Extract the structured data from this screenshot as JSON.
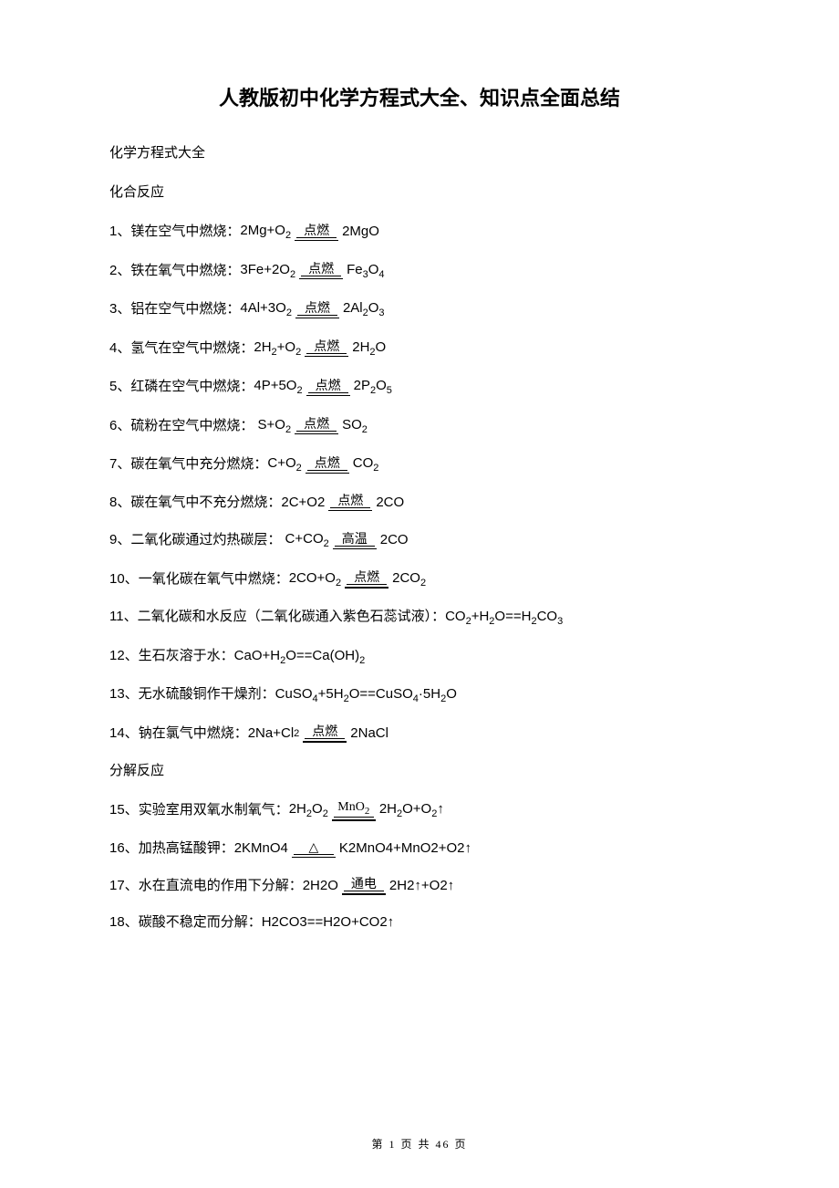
{
  "title": "人教版初中化学方程式大全、知识点全面总结",
  "section1": "化学方程式大全",
  "subheader1": "化合反应",
  "subheader2": "分解反应",
  "conditions": {
    "ignite": "点燃",
    "hightemp": "高温",
    "mno2": "MnO",
    "mno2_sub": "2",
    "triangle": "△",
    "electric": "通电"
  },
  "equations": [
    {
      "n": "1、",
      "d": "镁在空气中燃烧：",
      "l": "2Mg+O",
      "lsub": "2",
      "cond": "ignite",
      "r": "2MgO",
      "rsub": ""
    },
    {
      "n": "2、",
      "d": "铁在氧气中燃烧：",
      "l": "3Fe+2O",
      "lsub": "2",
      "cond": "ignite",
      "r": " Fe",
      "rsub": "3",
      "r2": "O",
      "rsub2": "4"
    },
    {
      "n": "3、",
      "d": "铝在空气中燃烧：",
      "l": "4Al+3O",
      "lsub": "2",
      "cond": "ignite",
      "r": " 2Al",
      "rsub": "2",
      "r2": "O",
      "rsub2": "3"
    },
    {
      "n": "4、",
      "d": "氢气在空气中燃烧：",
      "l": "2H",
      "lsub0": "2",
      "l2": "+O",
      "lsub": "2",
      "cond": "ignite",
      "r": " 2H",
      "rsub": "2",
      "r2": "O",
      "rsub2": ""
    },
    {
      "n": "5、",
      "d": "红磷在空气中燃烧：",
      "l": "4P+5O",
      "lsub": "2",
      "cond": "ignite",
      "r": " 2P",
      "rsub": "2",
      "r2": "O",
      "rsub2": "5"
    },
    {
      "n": "6、",
      "d": "硫粉在空气中燃烧：  ",
      "l": "S+O",
      "lsub": "2",
      "cond": "ignite",
      "r": " SO",
      "rsub": "2"
    },
    {
      "n": "7、",
      "d": "碳在氧气中充分燃烧：",
      "l": "C+O",
      "lsub": "2",
      "cond": "ignite",
      "r": "  CO",
      "rsub": "2"
    },
    {
      "n": "8、",
      "d": "碳在氧气中不充分燃烧：",
      "l": "2C+O2",
      "lsub": "",
      "cond": "ignite",
      "r": " 2CO",
      "rsub": ""
    },
    {
      "n": "9、",
      "d": "二氧化碳通过灼热碳层：  ",
      "l": "C+CO",
      "lsub": "2",
      "cond": "hightemp",
      "r": " 2CO",
      "rsub": ""
    },
    {
      "n": "10、",
      "d": "一氧化碳在氧气中燃烧：",
      "l": "2CO+O",
      "lsub": "2",
      "cond": "ignite",
      "r": "  2CO",
      "rsub": "2"
    }
  ],
  "plain_lines": [
    {
      "n": "11、",
      "text": "二氧化碳和水反应（二氧化碳通入紫色石蕊试液）：CO",
      "s1": "2",
      "t2": "+H",
      "s2": "2",
      "t3": "O==H",
      "s3": "2",
      "t4": "CO",
      "s4": "3"
    },
    {
      "n": "12、",
      "text": "生石灰溶于水：CaO+H",
      "s1": "2",
      "t2": "O==Ca(OH)",
      "s2": "2"
    },
    {
      "n": "13、",
      "text": "无水硫酸铜作干燥剂：CuSO",
      "s1": "4",
      "t2": "+5H",
      "s2": "2",
      "t3": "O==CuSO",
      "s3": "4",
      "t4": "·5H",
      "s4": "2",
      "t5": "O"
    }
  ],
  "eq14": {
    "n": "14、",
    "d": "钠在氯气中燃烧：",
    "l": "2Na+Cl",
    "lsub": "2",
    "cond": "ignite",
    "r": "  2NaCl"
  },
  "decomp": [
    {
      "n": "15、",
      "d": "实验室用双氧水制氧气：",
      "l": "2H",
      "lsub0": "2",
      "l2": "O",
      "lsub": "2",
      "cond": "mno2",
      "r": " 2H",
      "rsub": "2",
      "r2": "O+O",
      "rsub2": "2",
      "tail": "↑"
    },
    {
      "n": "16、",
      "d": "加热高锰酸钾：",
      "l": "2KMnO4",
      "cond": "triangle",
      "r": " K2MnO4+MnO2+O2↑"
    },
    {
      "n": "17、",
      "d": "水在直流电的作用下分解：",
      "l": "2H2O",
      "cond": "electric",
      "r": " 2H2↑+O2↑"
    }
  ],
  "eq18": {
    "n": "18、",
    "text": "碳酸不稳定而分解：H2CO3==H2O+CO2↑"
  },
  "footer": "第 1 页 共 46 页",
  "colors": {
    "text": "#000000",
    "background": "#ffffff"
  },
  "typography": {
    "title_fontsize": 22,
    "body_fontsize": 15,
    "footer_fontsize": 12
  }
}
